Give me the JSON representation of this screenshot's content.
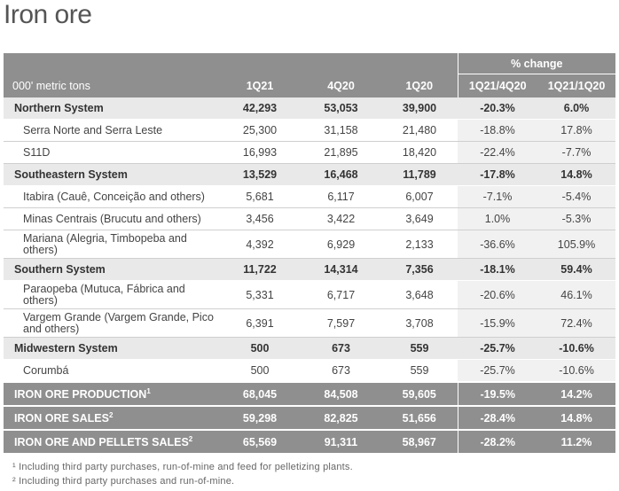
{
  "title": "Iron ore",
  "table": {
    "pct_change_label": "% change",
    "columns": [
      "000' metric tons",
      "1Q21",
      "4Q20",
      "1Q20",
      "1Q21/4Q20",
      "1Q21/1Q20"
    ],
    "rows": [
      {
        "type": "sys",
        "label": "Northern System",
        "v": [
          "42,293",
          "53,053",
          "39,900",
          "-20.3%",
          "6.0%"
        ]
      },
      {
        "type": "sub",
        "label": "Serra Norte and Serra Leste",
        "v": [
          "25,300",
          "31,158",
          "21,480",
          "-18.8%",
          "17.8%"
        ]
      },
      {
        "type": "sub",
        "label": "S11D",
        "v": [
          "16,993",
          "21,895",
          "18,420",
          "-22.4%",
          "-7.7%"
        ]
      },
      {
        "type": "sys",
        "label": "Southeastern System",
        "v": [
          "13,529",
          "16,468",
          "11,789",
          "-17.8%",
          "14.8%"
        ]
      },
      {
        "type": "sub",
        "label": "Itabira (Cauê, Conceição and others)",
        "v": [
          "5,681",
          "6,117",
          "6,007",
          "-7.1%",
          "-5.4%"
        ]
      },
      {
        "type": "sub",
        "label": "Minas Centrais (Brucutu and others)",
        "v": [
          "3,456",
          "3,422",
          "3,649",
          "1.0%",
          "-5.3%"
        ]
      },
      {
        "type": "sub",
        "tall": true,
        "label": "Mariana (Alegria, Timbopeba and others)",
        "v": [
          "4,392",
          "6,929",
          "2,133",
          "-36.6%",
          "105.9%"
        ]
      },
      {
        "type": "sys",
        "label": "Southern System",
        "v": [
          "11,722",
          "14,314",
          "7,356",
          "-18.1%",
          "59.4%"
        ]
      },
      {
        "type": "sub",
        "tall": true,
        "label": "Paraopeba (Mutuca, Fábrica and others)",
        "v": [
          "5,331",
          "6,717",
          "3,648",
          "-20.6%",
          "46.1%"
        ]
      },
      {
        "type": "sub",
        "tall": true,
        "label": "Vargem Grande (Vargem Grande, Pico and others)",
        "v": [
          "6,391",
          "7,597",
          "3,708",
          "-15.9%",
          "72.4%"
        ]
      },
      {
        "type": "sys",
        "label": "Midwestern System",
        "v": [
          "500",
          "673",
          "559",
          "-25.7%",
          "-10.6%"
        ]
      },
      {
        "type": "sub",
        "label": "Corumbá",
        "v": [
          "500",
          "673",
          "559",
          "-25.7%",
          "-10.6%"
        ]
      },
      {
        "type": "tot",
        "label": "IRON ORE PRODUCTION",
        "sup": "1",
        "v": [
          "68,045",
          "84,508",
          "59,605",
          "-19.5%",
          "14.2%"
        ]
      },
      {
        "type": "tot",
        "label": "IRON ORE SALES",
        "sup": "2",
        "v": [
          "59,298",
          "82,825",
          "51,656",
          "-28.4%",
          "14.8%"
        ]
      },
      {
        "type": "tot",
        "label": "IRON ORE AND PELLETS SALES",
        "sup": "2",
        "v": [
          "65,569",
          "91,311",
          "58,967",
          "-28.2%",
          "11.2%"
        ]
      }
    ]
  },
  "footnotes": [
    "¹ Including third party purchases, run-of-mine and feed for pelletizing plants.",
    "² Including third party purchases and run-of-mine."
  ]
}
